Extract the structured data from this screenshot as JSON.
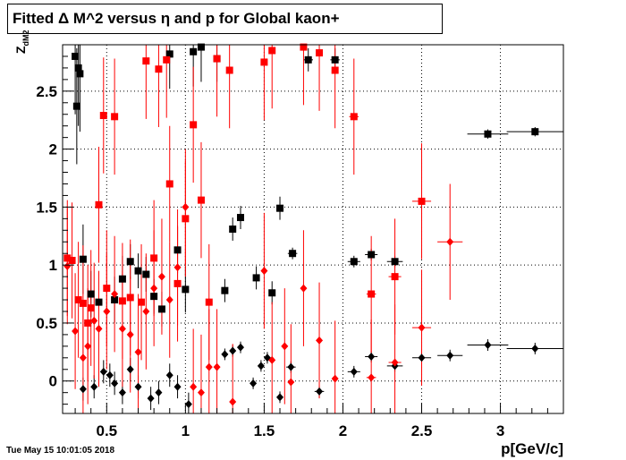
{
  "title": "Fitted Δ M^2 versus η and p for Global kaon+",
  "timestamp": "Tue May 15 10:01:05 2018",
  "colors": {
    "black_series": "#000000",
    "red_series": "#ff0000",
    "grid": "#000000"
  },
  "chart_data": {
    "type": "scatter",
    "title": "Fitted Δ M^2 versus η and p for Global kaon+",
    "xlabel": "p[GeV/c]",
    "ylabel": "Z",
    "ylabel_sub": "dM2",
    "xlim": [
      0.22,
      3.4
    ],
    "ylim": [
      -0.28,
      2.9
    ],
    "grid": true,
    "legend": "none",
    "x_ticks": [
      0.5,
      1,
      1.5,
      2,
      2.5,
      3
    ],
    "x_tick_labels": [
      "0.5",
      "1",
      "1.5",
      "2",
      "2.5",
      "3"
    ],
    "y_ticks": [
      0,
      0.5,
      1,
      1.5,
      2,
      2.5
    ],
    "y_tick_labels": [
      "0",
      "0.5",
      "1",
      "1.5",
      "2",
      "2.5"
    ],
    "series": [
      {
        "marker": "square",
        "color": "#000000",
        "points": [
          [
            0.3,
            2.8,
            0.01,
            0.5
          ],
          [
            0.32,
            2.7,
            0.01,
            0.5
          ],
          [
            0.33,
            2.65,
            0.01,
            0.5
          ],
          [
            0.31,
            2.37,
            0.01,
            0.5
          ],
          [
            0.35,
            1.05,
            0.01,
            0.3
          ],
          [
            0.4,
            0.75,
            0.01,
            0.2
          ],
          [
            0.45,
            0.68,
            0.01,
            0.2
          ],
          [
            0.55,
            0.7,
            0.01,
            0.2
          ],
          [
            0.6,
            0.88,
            0.01,
            0.2
          ],
          [
            0.65,
            1.03,
            0.01,
            0.15
          ],
          [
            0.7,
            0.95,
            0.01,
            0.15
          ],
          [
            0.75,
            0.92,
            0.01,
            0.15
          ],
          [
            0.8,
            0.73,
            0.01,
            0.15
          ],
          [
            0.85,
            0.62,
            0.01,
            0.15
          ],
          [
            0.9,
            2.82,
            0.01,
            0.3
          ],
          [
            0.95,
            1.13,
            0.01,
            0.2
          ],
          [
            1.0,
            0.79,
            0.01,
            0.2
          ],
          [
            1.05,
            2.84,
            0.01,
            0.3
          ],
          [
            1.1,
            2.88,
            0.01,
            0.3
          ],
          [
            1.2,
            2.78,
            0.01,
            0.2
          ],
          [
            1.25,
            0.78,
            0.02,
            0.1
          ],
          [
            1.3,
            1.31,
            0.02,
            0.1
          ],
          [
            1.35,
            1.41,
            0.02,
            0.1
          ],
          [
            1.45,
            0.89,
            0.02,
            0.1
          ],
          [
            1.55,
            0.76,
            0.02,
            0.1
          ],
          [
            1.6,
            1.49,
            0.02,
            0.1
          ],
          [
            1.68,
            1.1,
            0.03,
            0.05
          ],
          [
            1.78,
            2.77,
            0.03,
            0.1
          ],
          [
            1.95,
            2.77,
            0.03,
            0.1
          ],
          [
            2.07,
            1.03,
            0.04,
            0.05
          ],
          [
            2.18,
            1.09,
            0.04,
            0.05
          ],
          [
            2.33,
            1.03,
            0.05,
            0.05
          ],
          [
            2.92,
            2.13,
            0.13,
            0.04
          ],
          [
            3.22,
            2.15,
            0.18,
            0.04
          ]
        ]
      },
      {
        "marker": "diamond",
        "color": "#000000",
        "points": [
          [
            0.35,
            -0.07,
            0.01,
            0.1
          ],
          [
            0.42,
            -0.05,
            0.01,
            0.1
          ],
          [
            0.48,
            0.08,
            0.01,
            0.1
          ],
          [
            0.52,
            0.05,
            0.01,
            0.1
          ],
          [
            0.55,
            -0.02,
            0.01,
            0.1
          ],
          [
            0.6,
            -0.1,
            0.01,
            0.1
          ],
          [
            0.65,
            0.1,
            0.01,
            0.1
          ],
          [
            0.7,
            -0.05,
            0.01,
            0.1
          ],
          [
            0.78,
            -0.15,
            0.01,
            0.1
          ],
          [
            0.83,
            -0.1,
            0.01,
            0.1
          ],
          [
            0.9,
            0.05,
            0.01,
            0.1
          ],
          [
            0.95,
            -0.05,
            0.01,
            0.1
          ],
          [
            1.02,
            -0.2,
            0.01,
            0.1
          ],
          [
            1.25,
            0.23,
            0.02,
            0.05
          ],
          [
            1.3,
            0.26,
            0.02,
            0.05
          ],
          [
            1.35,
            0.29,
            0.02,
            0.05
          ],
          [
            1.43,
            -0.02,
            0.02,
            0.05
          ],
          [
            1.48,
            0.13,
            0.02,
            0.05
          ],
          [
            1.52,
            0.2,
            0.02,
            0.05
          ],
          [
            1.6,
            -0.14,
            0.02,
            0.05
          ],
          [
            1.67,
            0.12,
            0.03,
            0.05
          ],
          [
            1.85,
            -0.09,
            0.03,
            0.05
          ],
          [
            2.07,
            0.08,
            0.04,
            0.05
          ],
          [
            2.18,
            0.21,
            0.04,
            0.05
          ],
          [
            2.33,
            0.13,
            0.05,
            0.05
          ],
          [
            2.5,
            0.2,
            0.06,
            0.05
          ],
          [
            2.68,
            0.22,
            0.08,
            0.05
          ],
          [
            2.92,
            0.31,
            0.13,
            0.05
          ],
          [
            3.22,
            0.28,
            0.18,
            0.05
          ]
        ]
      },
      {
        "marker": "square",
        "color": "#ff0000",
        "points": [
          [
            0.25,
            1.06,
            0.01,
            0.5
          ],
          [
            0.28,
            1.04,
            0.01,
            0.5
          ],
          [
            0.32,
            0.7,
            0.01,
            0.5
          ],
          [
            0.35,
            0.67,
            0.01,
            0.5
          ],
          [
            0.38,
            0.5,
            0.01,
            0.5
          ],
          [
            0.4,
            0.63,
            0.01,
            0.5
          ],
          [
            0.45,
            1.52,
            0.01,
            0.5
          ],
          [
            0.48,
            2.29,
            0.01,
            0.5
          ],
          [
            0.5,
            0.8,
            0.01,
            0.5
          ],
          [
            0.55,
            2.28,
            0.01,
            0.5
          ],
          [
            0.6,
            0.69,
            0.01,
            0.5
          ],
          [
            0.65,
            0.72,
            0.01,
            0.5
          ],
          [
            0.72,
            0.68,
            0.01,
            0.5
          ],
          [
            0.75,
            2.76,
            0.01,
            0.5
          ],
          [
            0.8,
            1.06,
            0.01,
            0.5
          ],
          [
            0.83,
            2.69,
            0.01,
            0.5
          ],
          [
            0.88,
            2.77,
            0.01,
            0.5
          ],
          [
            0.9,
            1.7,
            0.01,
            0.5
          ],
          [
            0.95,
            0.84,
            0.01,
            0.5
          ],
          [
            1.0,
            1.4,
            0.01,
            0.5
          ],
          [
            1.05,
            2.21,
            0.01,
            0.5
          ],
          [
            1.1,
            1.56,
            0.01,
            0.5
          ],
          [
            1.15,
            0.68,
            0.01,
            0.5
          ],
          [
            1.2,
            2.78,
            0.01,
            0.5
          ],
          [
            1.28,
            2.68,
            0.01,
            0.5
          ],
          [
            1.5,
            2.75,
            0.01,
            0.5
          ],
          [
            1.55,
            2.85,
            0.01,
            0.5
          ],
          [
            1.75,
            2.88,
            0.01,
            0.5
          ],
          [
            1.85,
            2.83,
            0.01,
            0.5
          ],
          [
            1.95,
            2.68,
            0.01,
            0.5
          ],
          [
            2.07,
            2.28,
            0.03,
            0.5
          ],
          [
            2.18,
            0.75,
            0.03,
            0.5
          ],
          [
            2.33,
            0.9,
            0.04,
            0.5
          ],
          [
            2.5,
            1.55,
            0.06,
            0.5
          ]
        ]
      },
      {
        "marker": "diamond",
        "color": "#ff0000",
        "points": [
          [
            0.25,
            0.99,
            0.01,
            0.5
          ],
          [
            0.3,
            0.43,
            0.01,
            0.5
          ],
          [
            0.35,
            0.2,
            0.01,
            0.5
          ],
          [
            0.38,
            0.3,
            0.01,
            0.5
          ],
          [
            0.42,
            0.52,
            0.01,
            0.5
          ],
          [
            0.45,
            0.45,
            0.01,
            0.5
          ],
          [
            0.5,
            0.6,
            0.01,
            0.5
          ],
          [
            0.55,
            0.75,
            0.01,
            0.5
          ],
          [
            0.6,
            0.45,
            0.01,
            0.5
          ],
          [
            0.65,
            0.4,
            0.01,
            0.5
          ],
          [
            0.7,
            0.25,
            0.01,
            0.5
          ],
          [
            0.75,
            0.6,
            0.01,
            0.5
          ],
          [
            0.8,
            0.8,
            0.01,
            0.5
          ],
          [
            0.85,
            0.9,
            0.01,
            0.5
          ],
          [
            0.9,
            0.7,
            0.01,
            0.5
          ],
          [
            0.95,
            0.98,
            0.01,
            0.5
          ],
          [
            1.0,
            1.5,
            0.01,
            0.5
          ],
          [
            1.05,
            -0.05,
            0.01,
            0.5
          ],
          [
            1.1,
            -0.1,
            0.01,
            0.5
          ],
          [
            1.15,
            0.12,
            0.01,
            0.5
          ],
          [
            1.2,
            0.12,
            0.01,
            0.5
          ],
          [
            1.3,
            -0.18,
            0.01,
            0.5
          ],
          [
            1.5,
            0.95,
            0.01,
            0.5
          ],
          [
            1.55,
            0.18,
            0.01,
            0.5
          ],
          [
            1.63,
            0.3,
            0.01,
            0.5
          ],
          [
            1.67,
            -0.01,
            0.01,
            0.5
          ],
          [
            1.75,
            0.8,
            0.01,
            0.5
          ],
          [
            1.85,
            0.35,
            0.01,
            0.5
          ],
          [
            1.95,
            0.02,
            0.01,
            0.5
          ],
          [
            2.18,
            0.03,
            0.03,
            0.5
          ],
          [
            2.33,
            0.16,
            0.04,
            0.5
          ],
          [
            2.5,
            0.46,
            0.06,
            0.5
          ],
          [
            2.68,
            1.2,
            0.08,
            0.5
          ]
        ]
      }
    ]
  }
}
